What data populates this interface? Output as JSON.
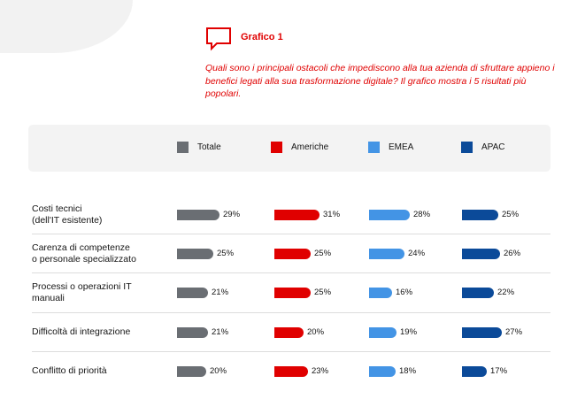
{
  "header": {
    "chart_label": "Grafico 1",
    "question": "Quali sono i principali ostacoli che impediscono alla tua azienda di sfruttare appieno i benefici legati alla sua trasformazione digitale? Il grafico mostra i 5 risultati più popolari."
  },
  "colors": {
    "accent": "#e00000",
    "Totale": "#6a6e73",
    "Americhe": "#e00000",
    "EMEA": "#4394e5",
    "APAC": "#0b4a99"
  },
  "icons": {
    "header_icon": "chat-bubble-icon"
  },
  "chart_data": {
    "type": "bar",
    "orientation": "horizontal",
    "title": "",
    "categories": [
      "Costi tecnici\n(dell'IT esistente)",
      "Carenza di competenze\no personale specializzato",
      "Processi o operazioni IT\nmanuali",
      "Difficoltà di integrazione",
      "Conflitto di priorità"
    ],
    "series": [
      {
        "name": "Totale",
        "values": [
          29,
          25,
          21,
          21,
          20
        ],
        "labels": [
          "29%",
          "25%",
          "21%",
          "21%",
          "20%"
        ]
      },
      {
        "name": "Americhe",
        "values": [
          31,
          25,
          25,
          20,
          23
        ],
        "labels": [
          "31%",
          "25%",
          "25%",
          "20%",
          "23%"
        ]
      },
      {
        "name": "EMEA",
        "values": [
          28,
          24,
          16,
          19,
          18
        ],
        "labels": [
          "28%",
          "24%",
          "16%",
          "19%",
          "18%"
        ]
      },
      {
        "name": "APAC",
        "values": [
          25,
          26,
          22,
          27,
          17
        ],
        "labels": [
          "25%",
          "26%",
          "22%",
          "27%",
          "17%"
        ]
      }
    ],
    "unit": "%",
    "legend_position": "top",
    "grid": false
  }
}
